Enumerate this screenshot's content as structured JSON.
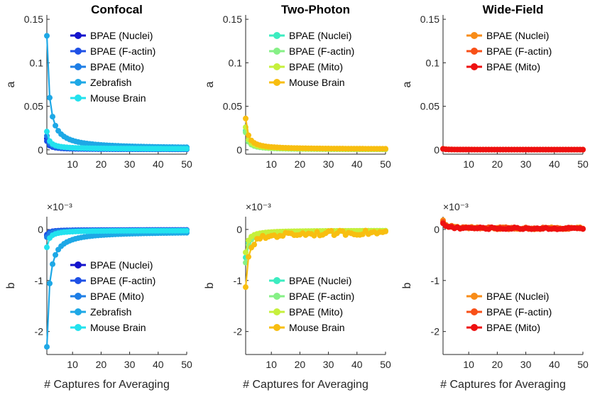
{
  "chart_data": [
    {
      "id": "confocal-a",
      "type": "line",
      "title": "Confocal",
      "xlabel": "",
      "ylabel": "a",
      "xlim": [
        1,
        50
      ],
      "ylim": [
        -0.005,
        0.155
      ],
      "yticks": [
        0,
        0.05,
        0.1,
        0.15
      ],
      "ytick_labels": [
        "0",
        "0.05",
        "0.1",
        "0.15"
      ],
      "xticks": [
        10,
        20,
        30,
        40,
        50
      ],
      "exponent": "",
      "legend_loc": "top-right",
      "series": [
        {
          "name": "BPAE (Nuclei)",
          "color": "#1414cc",
          "start": 0.013,
          "end": 0.0005
        },
        {
          "name": "BPAE (F-actin)",
          "color": "#1e50e6",
          "start": 0.01,
          "end": 0.0005
        },
        {
          "name": "BPAE (Mito)",
          "color": "#1e7ee6",
          "start": 0.016,
          "end": 0.0008
        },
        {
          "name": "Zebrafish",
          "color": "#1ea8e6",
          "start": 0.131,
          "end": 0.0015
        },
        {
          "name": "Mouse Brain",
          "color": "#22e2ee",
          "start": 0.021,
          "end": 0.001
        }
      ]
    },
    {
      "id": "two-photon-a",
      "type": "line",
      "title": "Two-Photon",
      "xlabel": "",
      "ylabel": "a",
      "xlim": [
        1,
        50
      ],
      "ylim": [
        -0.005,
        0.155
      ],
      "yticks": [
        0,
        0.05,
        0.1,
        0.15
      ],
      "ytick_labels": [
        "0",
        "0.05",
        "0.1",
        "0.15"
      ],
      "xticks": [
        10,
        20,
        30,
        40,
        50
      ],
      "exponent": "",
      "legend_loc": "top-right",
      "series": [
        {
          "name": "BPAE (Nuclei)",
          "color": "#3cecc0",
          "start": 0.022,
          "end": 0.0004
        },
        {
          "name": "BPAE (F-actin)",
          "color": "#86f086",
          "start": 0.02,
          "end": 0.0004
        },
        {
          "name": "BPAE (Mito)",
          "color": "#c6f03c",
          "start": 0.026,
          "end": 0.0005
        },
        {
          "name": "Mouse Brain",
          "color": "#f8be10",
          "start": 0.036,
          "end": 0.0008
        }
      ]
    },
    {
      "id": "wide-field-a",
      "type": "line",
      "title": "Wide-Field",
      "xlabel": "",
      "ylabel": "a",
      "xlim": [
        1,
        50
      ],
      "ylim": [
        -0.005,
        0.155
      ],
      "yticks": [
        0,
        0.05,
        0.1,
        0.15
      ],
      "ytick_labels": [
        "0",
        "0.05",
        "0.1",
        "0.15"
      ],
      "xticks": [
        10,
        20,
        30,
        40,
        50
      ],
      "exponent": "",
      "legend_loc": "top-right",
      "series": [
        {
          "name": "BPAE (Nuclei)",
          "color": "#f88c18",
          "start": 0.0012,
          "end": 0.0002
        },
        {
          "name": "BPAE (F-actin)",
          "color": "#f85018",
          "start": 0.0011,
          "end": 0.0002
        },
        {
          "name": "BPAE (Mito)",
          "color": "#ee1010",
          "start": 0.001,
          "end": 0.0002
        }
      ]
    },
    {
      "id": "confocal-b",
      "type": "line",
      "title": "",
      "xlabel": "# Captures for Averaging",
      "ylabel": "b",
      "xlim": [
        1,
        50
      ],
      "ylim": [
        -2.45,
        0.25
      ],
      "yticks": [
        0,
        -1,
        -2
      ],
      "ytick_labels": [
        "0",
        "-1",
        "-2"
      ],
      "xticks": [
        10,
        20,
        30,
        40,
        50
      ],
      "exponent": "×10⁻³",
      "legend_loc": "bottom-right",
      "series": [
        {
          "name": "BPAE (Nuclei)",
          "color": "#1414cc",
          "start": -0.12,
          "end": -0.01
        },
        {
          "name": "BPAE (F-actin)",
          "color": "#1e50e6",
          "start": -0.1,
          "end": -0.01
        },
        {
          "name": "BPAE (Mito)",
          "color": "#1e7ee6",
          "start": -0.15,
          "end": -0.02
        },
        {
          "name": "Zebrafish",
          "color": "#1ea8e6",
          "start": -2.3,
          "end": -0.04
        },
        {
          "name": "Mouse Brain",
          "color": "#22e2ee",
          "start": -0.35,
          "end": -0.02
        }
      ]
    },
    {
      "id": "two-photon-b",
      "type": "line",
      "title": "",
      "xlabel": "# Captures for Averaging",
      "ylabel": "b",
      "xlim": [
        1,
        50
      ],
      "ylim": [
        -2.45,
        0.25
      ],
      "yticks": [
        0,
        -1,
        -2
      ],
      "ytick_labels": [
        "0",
        "-1",
        "-2"
      ],
      "xticks": [
        10,
        20,
        30,
        40,
        50
      ],
      "exponent": "×10⁻³",
      "legend_loc": "bottom-right",
      "series": [
        {
          "name": "BPAE (Nuclei)",
          "color": "#3cecc0",
          "start": -0.55,
          "end": -0.02
        },
        {
          "name": "BPAE (F-actin)",
          "color": "#86f086",
          "start": -0.65,
          "end": -0.02
        },
        {
          "name": "BPAE (Mito)",
          "color": "#c6f03c",
          "start": -0.45,
          "end": -0.02
        },
        {
          "name": "Mouse Brain",
          "color": "#f8be10",
          "start": -1.13,
          "end": -0.05
        }
      ]
    },
    {
      "id": "wide-field-b",
      "type": "line",
      "title": "",
      "xlabel": "# Captures for Averaging",
      "ylabel": "b",
      "xlim": [
        1,
        50
      ],
      "ylim": [
        -2.45,
        0.25
      ],
      "yticks": [
        0,
        -1,
        -2
      ],
      "ytick_labels": [
        "0",
        "-1",
        "-2"
      ],
      "xticks": [
        10,
        20,
        30,
        40,
        50
      ],
      "exponent": "×10⁻³",
      "legend_loc": "bottom-right",
      "series": [
        {
          "name": "BPAE (Nuclei)",
          "color": "#f88c18",
          "start": 0.18,
          "end": 0.02
        },
        {
          "name": "BPAE (F-actin)",
          "color": "#f85018",
          "start": 0.15,
          "end": 0.02
        },
        {
          "name": "BPAE (Mito)",
          "color": "#ee1010",
          "start": 0.12,
          "end": 0.02
        }
      ]
    }
  ]
}
